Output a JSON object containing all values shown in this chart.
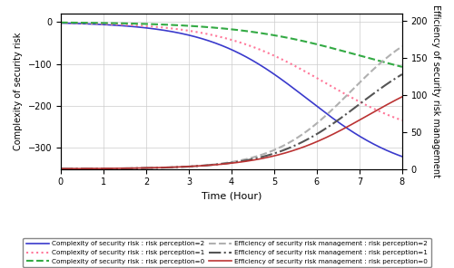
{
  "title": "",
  "xlabel": "Time (Hour)",
  "ylabel_left": "Complexity of security risk",
  "ylabel_right": "Efficiency of security risk management",
  "xlim": [
    0,
    8
  ],
  "ylim_left": [
    -350,
    20
  ],
  "ylim_right": [
    0,
    210
  ],
  "xticks": [
    0,
    1,
    2,
    3,
    4,
    5,
    6,
    7,
    8
  ],
  "yticks_left": [
    0,
    -100,
    -200,
    -300
  ],
  "yticks_right": [
    0,
    50,
    100,
    150,
    200
  ],
  "complexity": {
    "rp2": {
      "scale": -370,
      "k": 0.85,
      "t0": 5.8
    },
    "rp1": {
      "scale": -290,
      "k": 0.8,
      "t0": 6.2
    },
    "rp0": {
      "scale": -160,
      "k": 0.7,
      "t0": 7.0
    }
  },
  "efficiency": {
    "rp2": {
      "scale": 210,
      "k": 1.1,
      "t0": 6.8
    },
    "rp1": {
      "scale": 175,
      "k": 1.0,
      "t0": 7.0
    },
    "rp0": {
      "scale": 145,
      "k": 0.9,
      "t0": 7.2
    }
  },
  "line_colors": {
    "c_rp2": "#3a3acc",
    "c_rp1": "#ff7799",
    "c_rp0": "#33aa44",
    "e_rp2": "#b0b0b0",
    "e_rp1": "#555555",
    "e_rp0": "#bb3333"
  },
  "legend_entries": [
    {
      "label": "Complexity of security risk : risk perception=2",
      "color": "#3a3acc",
      "linestyle": "solid",
      "lw": 1.2
    },
    {
      "label": "Complexity of security risk : risk perception=1",
      "color": "#ff7799",
      "linestyle": "dotted",
      "lw": 1.5
    },
    {
      "label": "Complexity of security risk : risk perception=0",
      "color": "#33aa44",
      "linestyle": "dashed",
      "lw": 1.5
    },
    {
      "label": "Efficiency of security risk management : risk perception=2",
      "color": "#b0b0b0",
      "linestyle": "dashed",
      "lw": 1.5
    },
    {
      "label": "Efficiency of security risk management : risk perception=1",
      "color": "#555555",
      "linestyle": "dashdot",
      "lw": 1.5
    },
    {
      "label": "Efficiency of security risk management : risk perception=0",
      "color": "#bb3333",
      "linestyle": "solid",
      "lw": 1.2
    }
  ],
  "background_color": "#ffffff"
}
